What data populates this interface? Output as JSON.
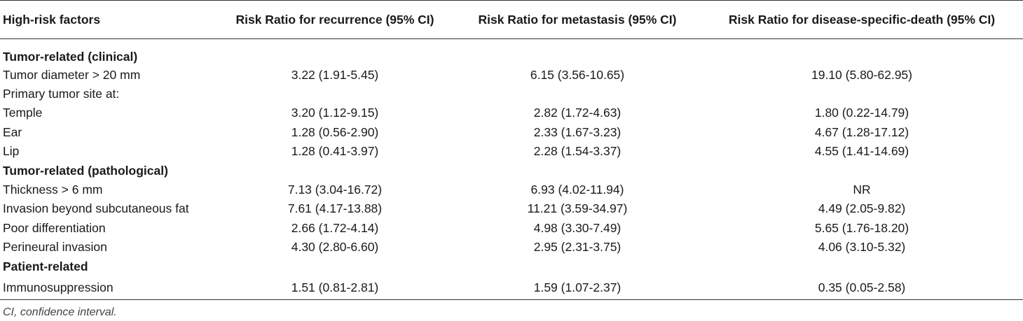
{
  "table": {
    "headers": [
      "High-risk factors",
      "Risk Ratio for recurrence (95% CI)",
      "Risk Ratio for metastasis (95% CI)",
      "Risk Ratio for disease-specific-death (95% CI)"
    ],
    "rows": [
      {
        "type": "section",
        "label": "Tumor-related (clinical)",
        "values": [
          "",
          "",
          ""
        ]
      },
      {
        "type": "data",
        "label": "Tumor diameter > 20 mm",
        "values": [
          "3.22 (1.91-5.45)",
          "6.15 (3.56-10.65)",
          "19.10 (5.80-62.95)"
        ]
      },
      {
        "type": "data",
        "label": "Primary tumor site at:",
        "values": [
          "",
          "",
          ""
        ]
      },
      {
        "type": "data",
        "label": "Temple",
        "values": [
          "3.20 (1.12-9.15)",
          "2.82 (1.72-4.63)",
          "1.80 (0.22-14.79)"
        ]
      },
      {
        "type": "data",
        "label": "Ear",
        "values": [
          "1.28 (0.56-2.90)",
          "2.33 (1.67-3.23)",
          "4.67 (1.28-17.12)"
        ]
      },
      {
        "type": "data",
        "label": "Lip",
        "values": [
          "1.28 (0.41-3.97)",
          "2.28 (1.54-3.37)",
          "4.55 (1.41-14.69)"
        ]
      },
      {
        "type": "section",
        "label": "Tumor-related (pathological)",
        "values": [
          "",
          "",
          ""
        ]
      },
      {
        "type": "data",
        "label": "Thickness > 6 mm",
        "values": [
          "7.13 (3.04-16.72)",
          "6.93 (4.02-11.94)",
          "NR"
        ]
      },
      {
        "type": "data",
        "label": "Invasion beyond subcutaneous fat",
        "values": [
          "7.61 (4.17-13.88)",
          "11.21 (3.59-34.97)",
          "4.49 (2.05-9.82)"
        ]
      },
      {
        "type": "data",
        "label": "Poor differentiation",
        "values": [
          "2.66 (1.72-4.14)",
          "4.98 (3.30-7.49)",
          "5.65 (1.76-18.20)"
        ]
      },
      {
        "type": "data",
        "label": "Perineural invasion",
        "values": [
          "4.30 (2.80-6.60)",
          "2.95 (2.31-3.75)",
          "4.06 (3.10-5.32)"
        ]
      },
      {
        "type": "section",
        "label": "Patient-related",
        "values": [
          "",
          "",
          ""
        ]
      },
      {
        "type": "data",
        "label": "Immunosuppression",
        "values": [
          "1.51 (0.81-2.81)",
          "1.59 (1.07-2.37)",
          "0.35 (0.05-2.58)"
        ]
      }
    ]
  },
  "footnote": "CI, confidence interval."
}
